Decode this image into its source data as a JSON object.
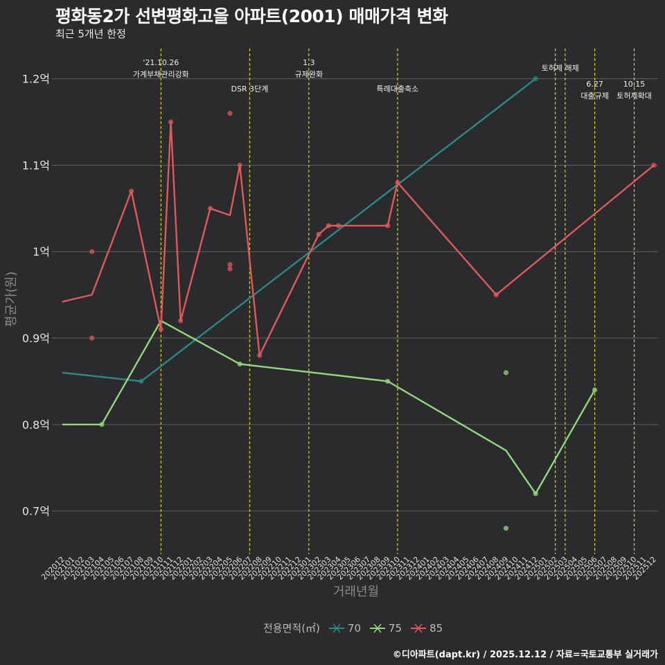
{
  "title": "평화동2가 선변평화고을 아파트(2001) 매매가격 변화",
  "subtitle": "최근 5개년 한정",
  "caption": "©디아파트(dapt.kr) / 2025.12.12 / 자료=국토교통부 실거래가",
  "chart_data": {
    "type": "line",
    "xlabel": "거래년월",
    "ylabel": "평균가(원)",
    "categories": [
      "202012",
      "202101",
      "202102",
      "202103",
      "202104",
      "202105",
      "202106",
      "202107",
      "202108",
      "202109",
      "202110",
      "202111",
      "202112",
      "202201",
      "202202",
      "202203",
      "202204",
      "202205",
      "202206",
      "202207",
      "202208",
      "202209",
      "202210",
      "202211",
      "202212",
      "202301",
      "202302",
      "202303",
      "202304",
      "202305",
      "202306",
      "202307",
      "202308",
      "202309",
      "202310",
      "202311",
      "202312",
      "202401",
      "202402",
      "202403",
      "202404",
      "202405",
      "202406",
      "202407",
      "202408",
      "202409",
      "202410",
      "202411",
      "202412",
      "202501",
      "202502",
      "202503",
      "202504",
      "202505",
      "202506",
      "202507",
      "202508",
      "202509",
      "202510",
      "202511",
      "202512"
    ],
    "ylim": [
      0.65,
      1.235
    ],
    "yticks": [
      {
        "value": 0.7,
        "label": "0.7억"
      },
      {
        "value": 0.8,
        "label": "0.8억"
      },
      {
        "value": 0.9,
        "label": "0.9억"
      },
      {
        "value": 1.0,
        "label": "1억"
      },
      {
        "value": 1.1,
        "label": "1.1억"
      },
      {
        "value": 1.2,
        "label": "1.2억"
      }
    ],
    "legend_title": "전용면적(㎡)",
    "series": [
      {
        "name": "70",
        "color": "#2a8a89",
        "line": [
          [
            "202012",
            0.86
          ],
          [
            "202108",
            0.85
          ],
          [
            "202412",
            1.2
          ]
        ],
        "points": [
          [
            "202108",
            0.85
          ],
          [
            "202412",
            1.2
          ]
        ]
      },
      {
        "name": "75",
        "color": "#8fdb7c",
        "line": [
          [
            "202012",
            0.8
          ],
          [
            "202104",
            0.8
          ],
          [
            "202110",
            0.92
          ],
          [
            "202206",
            0.87
          ],
          [
            "202309",
            0.85
          ],
          [
            "202409",
            0.77
          ],
          [
            "202412",
            0.72
          ],
          [
            "202506",
            0.84
          ]
        ],
        "points": [
          [
            "202104",
            0.8
          ],
          [
            "202206",
            0.87
          ],
          [
            "202309",
            0.85
          ],
          [
            "202409",
            0.86
          ],
          [
            "202409",
            0.68
          ],
          [
            "202412",
            0.72
          ],
          [
            "202506",
            0.84
          ]
        ]
      },
      {
        "name": "85",
        "color": "#e05a5a",
        "line": [
          [
            "202012",
            0.942
          ],
          [
            "202103",
            0.95
          ],
          [
            "202107",
            1.07
          ],
          [
            "202110",
            0.91
          ],
          [
            "202111",
            1.15
          ],
          [
            "202112",
            0.92
          ],
          [
            "202203",
            1.05
          ],
          [
            "202205",
            1.042
          ],
          [
            "202206",
            1.1
          ],
          [
            "202208",
            0.88
          ],
          [
            "202302",
            1.02
          ],
          [
            "202303",
            1.03
          ],
          [
            "202304",
            1.03
          ],
          [
            "202309",
            1.03
          ],
          [
            "202310",
            1.08
          ],
          [
            "202408",
            0.95
          ],
          [
            "202512",
            1.1
          ]
        ],
        "points": [
          [
            "202103",
            1.0
          ],
          [
            "202103",
            0.9
          ],
          [
            "202107",
            1.07
          ],
          [
            "202110",
            0.91
          ],
          [
            "202111",
            1.15
          ],
          [
            "202112",
            0.92
          ],
          [
            "202203",
            1.05
          ],
          [
            "202205",
            1.16
          ],
          [
            "202205",
            0.985
          ],
          [
            "202205",
            0.98
          ],
          [
            "202206",
            1.1
          ],
          [
            "202208",
            0.88
          ],
          [
            "202302",
            1.02
          ],
          [
            "202303",
            1.03
          ],
          [
            "202304",
            1.03
          ],
          [
            "202309",
            1.03
          ],
          [
            "202310",
            1.08
          ],
          [
            "202408",
            0.95
          ],
          [
            "202512",
            1.1
          ]
        ]
      }
    ],
    "events": [
      {
        "month": "202110",
        "lines": [
          "'21.10.26",
          "가계부채관리강화"
        ],
        "level": 1
      },
      {
        "month": "202207",
        "lines": [
          "DSR 3단계"
        ],
        "level": 2
      },
      {
        "month": "202301",
        "lines": [
          "1.3",
          "규제완화"
        ],
        "level": 1
      },
      {
        "month": "202310",
        "lines": [
          "특례대출축소"
        ],
        "level": 2
      },
      {
        "month": "202502",
        "lines": [
          "토허제 해제"
        ],
        "level": 0,
        "center_between": "202503"
      },
      {
        "month": "202503",
        "lines": [],
        "level": 0
      },
      {
        "month": "202506",
        "lines": [
          "6.27",
          "대출규제"
        ],
        "level": 3
      },
      {
        "month": "202510",
        "lines": [
          "10.15",
          "토허제확대"
        ],
        "level": 3
      }
    ]
  },
  "legend": {
    "title": "전용면적(㎡)",
    "items": [
      {
        "label": "70",
        "color": "#2a8a89"
      },
      {
        "label": "75",
        "color": "#8fdb7c"
      },
      {
        "label": "85",
        "color": "#e05a5a"
      }
    ]
  }
}
